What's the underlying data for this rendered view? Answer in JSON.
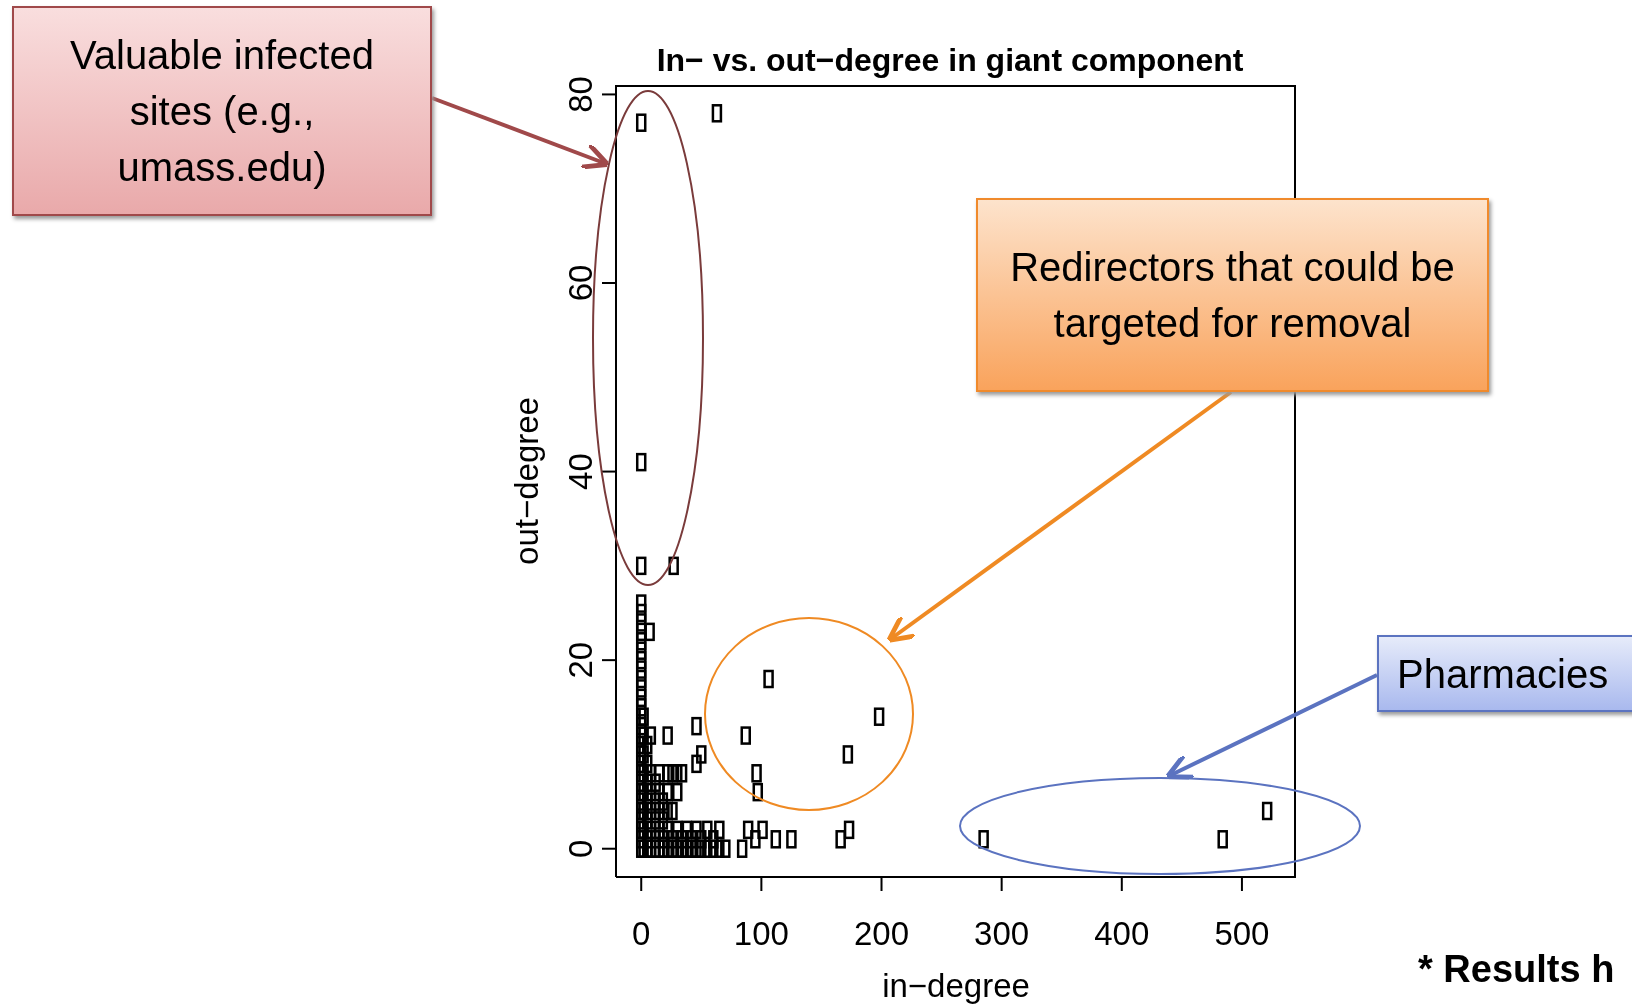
{
  "chart_data": {
    "type": "scatter",
    "title": "In− vs. out−degree in giant component",
    "xlabel": "in−degree",
    "ylabel": "out−degree",
    "xlim": [
      -21,
      545
    ],
    "ylim": [
      -3,
      81
    ],
    "xticks": [
      0,
      100,
      200,
      300,
      400,
      500
    ],
    "yticks": [
      0,
      20,
      40,
      60,
      80
    ],
    "grid": false,
    "legend": false,
    "marker": "square",
    "annotations": [
      "Valuable infected sites (e.g., umass.edu)",
      "Redirectors that could be targeted for removal",
      "Pharmacies",
      "* Results h"
    ],
    "series": [
      {
        "color": "#000000",
        "x": [
          0,
          0,
          0,
          0,
          0,
          0,
          0,
          0,
          0,
          0,
          0,
          0,
          0,
          0,
          0,
          0,
          0,
          0,
          0,
          0,
          0,
          0,
          0,
          0,
          0,
          0,
          0,
          2,
          2,
          2,
          2,
          2,
          2,
          2,
          2,
          5,
          5,
          5,
          5,
          5,
          5,
          5,
          8,
          8,
          8,
          8,
          8,
          8,
          12,
          12,
          12,
          12,
          12,
          15,
          15,
          15,
          15,
          15,
          18,
          18,
          18,
          18,
          22,
          22,
          22,
          22,
          22,
          22,
          26,
          26,
          26,
          26,
          30,
          30,
          30,
          30,
          34,
          34,
          34,
          38,
          38,
          42,
          42,
          46,
          46,
          46,
          46,
          50,
          50,
          50,
          55,
          55,
          60,
          60,
          65,
          65,
          70,
          0,
          63,
          0,
          0,
          27,
          7,
          106,
          198,
          172,
          87,
          96,
          97,
          84,
          89,
          95,
          101,
          112,
          125,
          166,
          173,
          285,
          484,
          521
        ],
        "values": [
          0,
          1,
          2,
          3,
          4,
          5,
          6,
          7,
          8,
          9,
          10,
          11,
          12,
          13,
          14,
          15,
          16,
          17,
          18,
          19,
          20,
          21,
          22,
          23,
          24,
          25,
          26,
          0,
          2,
          4,
          6,
          8,
          10,
          12,
          14,
          0,
          1,
          3,
          5,
          7,
          9,
          11,
          0,
          2,
          4,
          6,
          8,
          12,
          0,
          1,
          3,
          5,
          7,
          0,
          2,
          4,
          6,
          8,
          0,
          1,
          3,
          5,
          0,
          2,
          4,
          6,
          8,
          12,
          0,
          1,
          4,
          8,
          0,
          2,
          6,
          8,
          0,
          1,
          8,
          0,
          2,
          0,
          1,
          0,
          2,
          9,
          13,
          0,
          1,
          10,
          0,
          2,
          0,
          1,
          0,
          2,
          0,
          77,
          78,
          41,
          30,
          30,
          23,
          18,
          14,
          10,
          12,
          8,
          6,
          0,
          2,
          1,
          2,
          1,
          1,
          1,
          2,
          1,
          1,
          4
        ]
      }
    ]
  }
}
